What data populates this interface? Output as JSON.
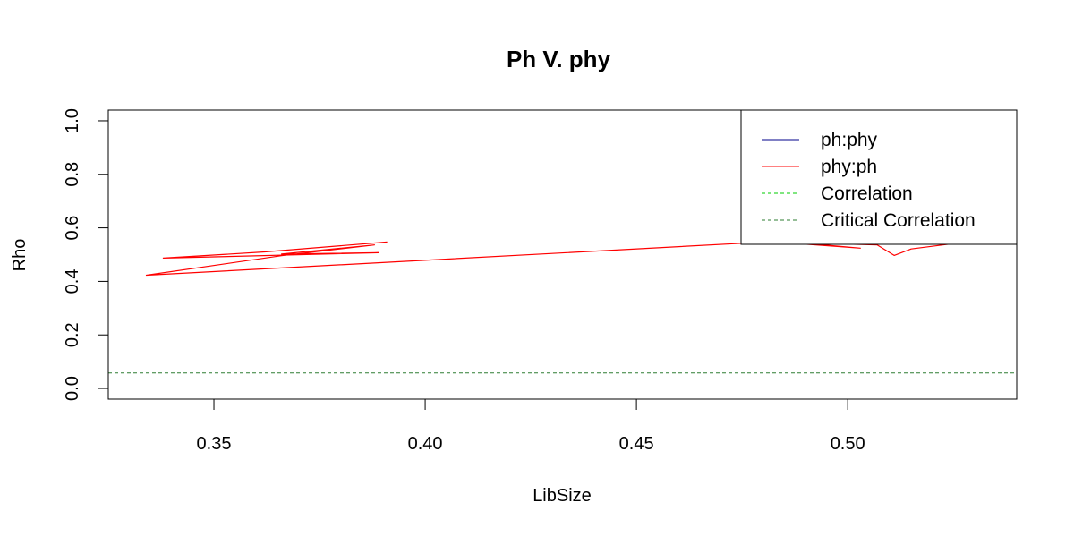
{
  "chart_data": {
    "type": "line",
    "title": "Ph V. phy",
    "xlabel": "LibSize",
    "ylabel": "Rho",
    "xlim": [
      0.325,
      0.54
    ],
    "ylim": [
      -0.04,
      1.04
    ],
    "x_ticks": [
      0.35,
      0.4,
      0.45,
      0.5
    ],
    "x_tick_labels": [
      "0.35",
      "0.40",
      "0.45",
      "0.50"
    ],
    "y_ticks": [
      0.0,
      0.2,
      0.4,
      0.6,
      0.8,
      1.0
    ],
    "y_tick_labels": [
      "0.0",
      "0.2",
      "0.4",
      "0.6",
      "0.8",
      "1.0"
    ],
    "grid": false,
    "legend_position": "top-right",
    "series": [
      {
        "name": "phy:ph",
        "color": "#ff0000",
        "style": "solid",
        "points": [
          [
            0.391,
            0.547
          ],
          [
            0.362,
            0.51
          ],
          [
            0.338,
            0.487
          ],
          [
            0.389,
            0.507
          ],
          [
            0.366,
            0.502
          ],
          [
            0.388,
            0.536
          ],
          [
            0.366,
            0.496
          ],
          [
            0.334,
            0.423
          ],
          [
            0.477,
            0.544
          ],
          [
            0.483,
            0.547
          ],
          [
            0.503,
            0.524
          ],
          [
            0.489,
            0.544
          ],
          [
            0.507,
            0.536
          ],
          [
            0.511,
            0.497
          ],
          [
            0.515,
            0.521
          ],
          [
            0.525,
            0.541
          ],
          [
            0.534,
            0.539
          ],
          [
            0.537,
            0.54
          ]
        ]
      },
      {
        "name": "Critical Correlation",
        "color": "#2e7d32",
        "style": "dashed",
        "y": 0.058
      }
    ],
    "legend": [
      {
        "label": "ph:phy",
        "color": "#00008b",
        "style": "solid"
      },
      {
        "label": "phy:ph",
        "color": "#ff0000",
        "style": "solid"
      },
      {
        "label": "Correlation",
        "color": "#00cc00",
        "style": "dashed"
      },
      {
        "label": "Critical Correlation",
        "color": "#2e7d32",
        "style": "dashed"
      }
    ]
  }
}
